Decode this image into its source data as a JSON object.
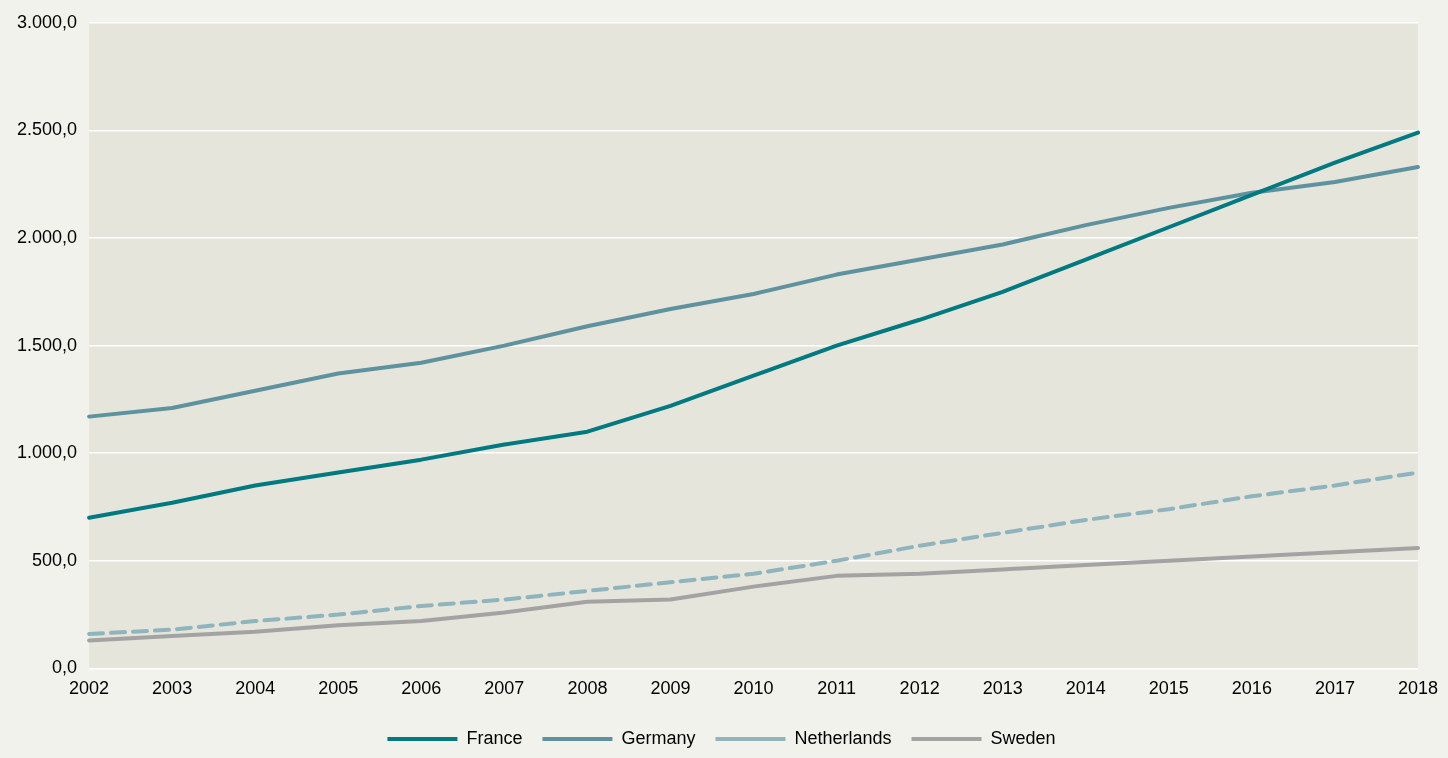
{
  "chart_data": {
    "type": "line",
    "categories": [
      "2002",
      "2003",
      "2004",
      "2005",
      "2006",
      "2007",
      "2008",
      "2009",
      "2010",
      "2011",
      "2012",
      "2013",
      "2014",
      "2015",
      "2016",
      "2017",
      "2018"
    ],
    "series": [
      {
        "name": "France",
        "color": "#007a80",
        "values": [
          700,
          770,
          850,
          910,
          970,
          1040,
          1100,
          1220,
          1360,
          1500,
          1620,
          1750,
          1900,
          2050,
          2200,
          2350,
          2490
        ]
      },
      {
        "name": "Germany",
        "color": "#5f929f",
        "values": [
          1170,
          1210,
          1290,
          1370,
          1420,
          1500,
          1590,
          1670,
          1740,
          1830,
          1900,
          1970,
          2060,
          2140,
          2210,
          2260,
          2330
        ]
      },
      {
        "name": "Netherlands",
        "color": "#8fb4be",
        "line_style": "dashed",
        "values": [
          160,
          180,
          220,
          250,
          290,
          320,
          360,
          400,
          440,
          500,
          570,
          630,
          690,
          740,
          800,
          850,
          910
        ]
      },
      {
        "name": "Sweden",
        "color": "#a3a3a3",
        "values": [
          130,
          150,
          170,
          200,
          220,
          260,
          310,
          320,
          380,
          430,
          440,
          460,
          480,
          500,
          520,
          540,
          560
        ]
      }
    ],
    "ylim": [
      0,
      3000
    ],
    "yticks": [
      {
        "value": 0,
        "label": "0,0"
      },
      {
        "value": 500,
        "label": "500,0"
      },
      {
        "value": 1000,
        "label": "1.000,0"
      },
      {
        "value": 1500,
        "label": "1.500,0"
      },
      {
        "value": 2000,
        "label": "2.000,0"
      },
      {
        "value": 2500,
        "label": "2.500,0"
      },
      {
        "value": 3000,
        "label": "3.000,0"
      }
    ],
    "grid": "y",
    "legend": "bottom",
    "marker": "none",
    "line_style": "solid"
  }
}
